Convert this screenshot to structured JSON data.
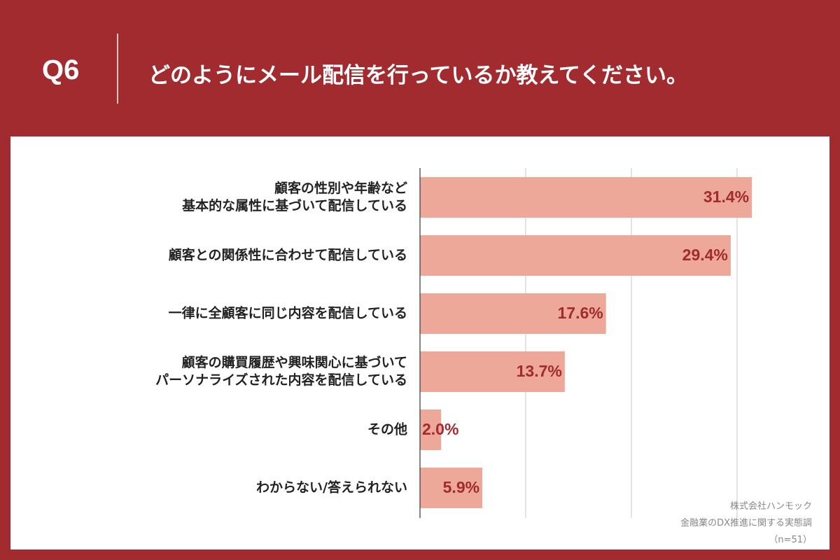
{
  "header": {
    "label": "Q6",
    "title": "どのようにメール配信を行っているか教えてください。"
  },
  "chart_data": {
    "type": "bar",
    "orientation": "horizontal",
    "categories": [
      "顧客の性別や年齢など\n基本的な属性に基づいて配信している",
      "顧客との関係性に合わせて配信している",
      "一律に全顧客に同じ内容を配信している",
      "顧客の購買履歴や興味関心に基づいて\nパーソナライズされた内容を配信している",
      "その他",
      "わからない/答えられない"
    ],
    "values": [
      31.4,
      29.4,
      17.6,
      13.7,
      2.0,
      5.9
    ],
    "value_labels": [
      "31.4%",
      "29.4%",
      "17.6%",
      "13.7%",
      "2.0%",
      "5.9%"
    ],
    "color": "#eea899",
    "xlim": [
      0,
      35.5
    ],
    "xticks": [
      10,
      20,
      30
    ],
    "grid": true,
    "source": [
      "株式会社ハンモック",
      "金融業のDX推進に関する実態調",
      "（n=51）"
    ]
  }
}
